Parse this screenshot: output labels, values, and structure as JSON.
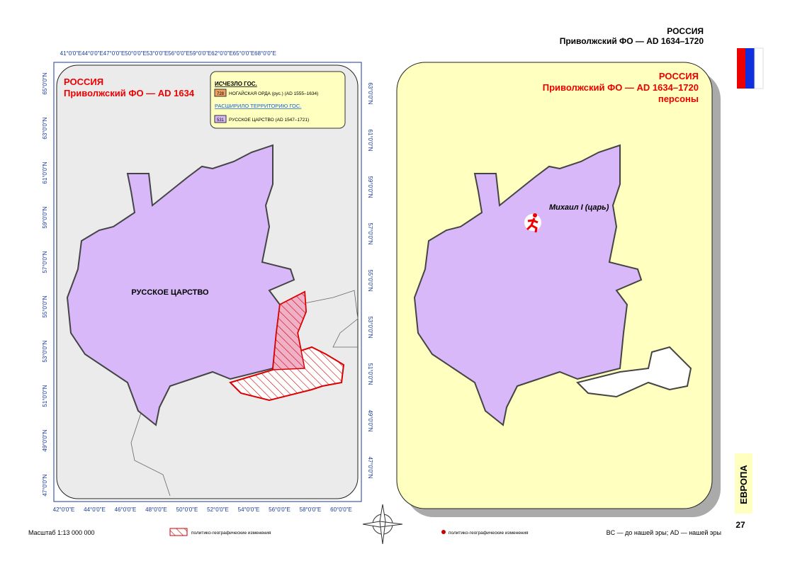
{
  "header": {
    "title": "РОССИЯ",
    "subtitle": "Приволжский ФО — AD 1634–1720"
  },
  "left_map": {
    "title": "РОССИЯ",
    "subtitle": "Приволжский ФО — AD 1634",
    "legend": {
      "vanished_heading": "ИСЧЕЗЛО ГОС.",
      "vanished_code": "728",
      "vanished_label": "НОГАЙСКАЯ ОРДА (рус.) (AD 1555–1634)",
      "expanded_heading": "РАСШИРИЛО ТЕРРИТОРИЮ ГОС.",
      "expanded_code": "531",
      "expanded_label": "РУССКОЕ ЦАРСТВО (AD 1547–1721)"
    },
    "region_label": "РУССКОЕ ЦАРСТВО",
    "top_ticks": [
      "41°0'0\"E",
      "44°0'0\"E",
      "47°0'0\"E",
      "50°0'0\"E",
      "53°0'0\"E",
      "56°0'0\"E",
      "59°0'0\"E",
      "62°0'0\"E",
      "65°0'0\"E",
      "68°0'0\"E"
    ],
    "bottom_ticks": [
      "42°0'0\"E",
      "44°0'0\"E",
      "46°0'0\"E",
      "48°0'0\"E",
      "50°0'0\"E",
      "52°0'0\"E",
      "54°0'0\"E",
      "56°0'0\"E",
      "58°0'0\"E",
      "60°0'0\"E"
    ],
    "left_ticks": [
      "65°0'0\"N",
      "63°0'0\"N",
      "61°0'0\"N",
      "59°0'0\"N",
      "57°0'0\"N",
      "55°0'0\"N",
      "53°0'0\"N",
      "51°0'0\"N",
      "49°0'0\"N",
      "47°0'0\"N"
    ],
    "right_ticks": [
      "63°0'0\"N",
      "61°0'0\"N",
      "59°0'0\"N",
      "57°0'0\"N",
      "55°0'0\"N",
      "53°0'0\"N",
      "51°0'0\"N",
      "49°0'0\"N",
      "47°0'0\"N"
    ]
  },
  "right_map": {
    "title": "РОССИЯ",
    "subtitle": "Приволжский ФО — AD 1634–1720",
    "caption": "персоны",
    "person": "Михаил I (царь)"
  },
  "side_tab": "ЕВРОПА",
  "page_number": "27",
  "footer": {
    "scale": "Масштаб 1:13 000 000",
    "hatch_legend": "политико-географические изменения",
    "dot_legend": "политико-географические изменения",
    "era_note": "BC — до нашей эры; AD — нашей эры"
  }
}
